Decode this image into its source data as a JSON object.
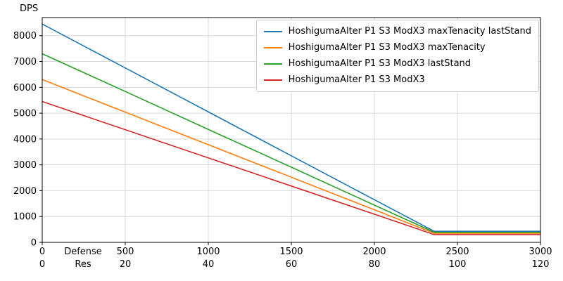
{
  "chart_data": {
    "type": "line",
    "ylabel": "DPS",
    "xlim": [
      0,
      3000
    ],
    "ylim": [
      0,
      8700
    ],
    "yticks": [
      0,
      1000,
      2000,
      3000,
      4000,
      5000,
      6000,
      7000,
      8000
    ],
    "grid": true,
    "legend_position": "upper right",
    "x": [
      0,
      500,
      1000,
      1500,
      2000,
      2360,
      3000
    ],
    "xaxis_rows": [
      {
        "label": "Defense",
        "ticks": [
          0,
          500,
          1000,
          1500,
          2000,
          2500,
          3000
        ]
      },
      {
        "label": "Res",
        "ticks": [
          0,
          20,
          40,
          60,
          80,
          100,
          120
        ]
      }
    ],
    "series": [
      {
        "name": "HoshigumaAlter P1 S3 ModX3 maxTenacity lastStand",
        "color": "#1f77b4",
        "values": [
          8450,
          6750,
          5050,
          3350,
          1650,
          430,
          430
        ]
      },
      {
        "name": "HoshigumaAlter P1 S3 ModX3 maxTenacity",
        "color": "#ff7f0e",
        "values": [
          6300,
          5040,
          3780,
          2520,
          1260,
          350,
          350
        ]
      },
      {
        "name": "HoshigumaAlter P1 S3 ModX3 lastStand",
        "color": "#2ca02c",
        "values": [
          7300,
          5840,
          4370,
          2910,
          1440,
          390,
          390
        ]
      },
      {
        "name": "HoshigumaAlter P1 S3 ModX3",
        "color": "#d62728",
        "values": [
          5450,
          4360,
          3270,
          2180,
          1090,
          300,
          300
        ]
      }
    ]
  }
}
